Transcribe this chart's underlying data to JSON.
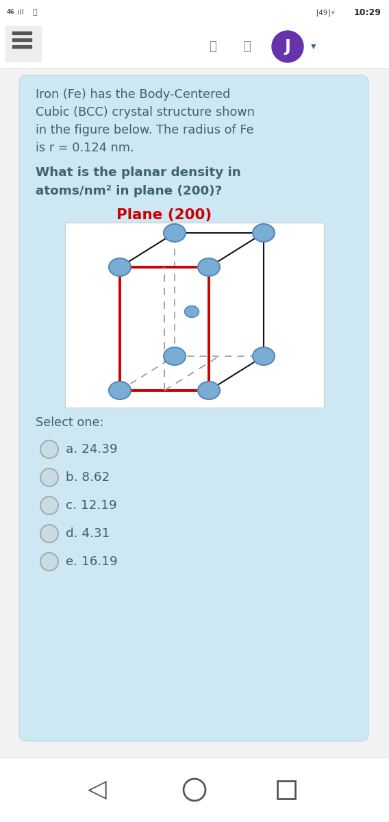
{
  "bg_color": "#f2f2f2",
  "card_bg": "#cee8f3",
  "body_text_color": "#3d6272",
  "text_color": "#3d6272",
  "plane_label": "Plane (200)",
  "plane_label_color": "#cc0000",
  "select_label": "Select one:",
  "options": [
    "a. 24.39",
    "b. 8.62",
    "c. 12.19",
    "d. 4.31",
    "e. 16.19"
  ],
  "atom_color": "#7aadd4",
  "atom_edge_color": "#5588bb",
  "cube_line_color": "#111111",
  "red_plane_color": "#cc0000",
  "dashed_line_color": "#999999",
  "j_button_color": "#6633aa",
  "nav_arrow_color": "#336699",
  "radio_fill": "#c8dce8",
  "radio_edge": "#aaaaaa"
}
